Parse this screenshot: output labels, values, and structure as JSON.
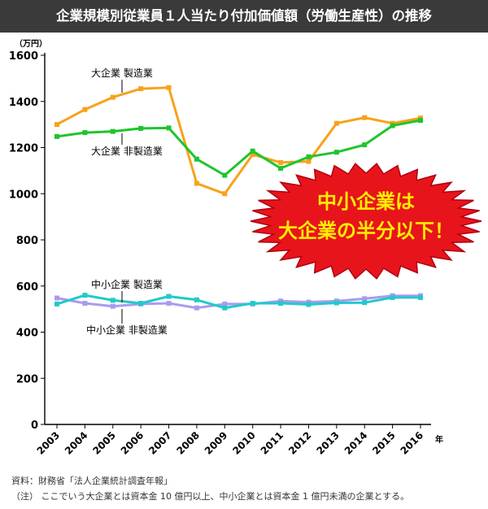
{
  "title": "企業規模別従業員１人当たり付加価値額（労働生産性）の推移",
  "callout": {
    "line1": "中小企業は",
    "line2": "大企業の半分以下！"
  },
  "footer": {
    "source": "資料：財務省「法人企業統計調査年報」",
    "note": "（注） ここでいう大企業とは資本金 10 億円以上、中小企業とは資本金 1 億円未満の企業とする。"
  },
  "colors": {
    "orange": "#f7a21b",
    "green": "#1ec52c",
    "lavender": "#aa9af0",
    "cyan": "#22c9c9",
    "callout_red": "#e8141c",
    "callout_text": "#ffee00"
  },
  "chart_data": {
    "type": "line",
    "title": "企業規模別従業員１人当たり付加価値額（労働生産性）の推移",
    "yunit": "（万円）",
    "xunit": "年",
    "ylim": [
      0,
      1600
    ],
    "yticks": [
      "0",
      "200",
      "400",
      "600",
      "800",
      "1000",
      "1200",
      "1400",
      "1600"
    ],
    "categories": [
      "2003",
      "2004",
      "2005",
      "2006",
      "2007",
      "2008",
      "2009",
      "2010",
      "2011",
      "2012",
      "2013",
      "2014",
      "2015",
      "2016"
    ],
    "series": [
      {
        "name": "大企業 製造業",
        "color": "#f7a21b",
        "values": [
          1300,
          1365,
          1418,
          1455,
          1460,
          1045,
          1000,
          1170,
          1135,
          1140,
          1305,
          1330,
          1305,
          1328
        ]
      },
      {
        "name": "大企業 非製造業",
        "color": "#1ec52c",
        "values": [
          1248,
          1265,
          1270,
          1283,
          1285,
          1150,
          1080,
          1185,
          1110,
          1160,
          1180,
          1212,
          1295,
          1318
        ]
      },
      {
        "name": "中小企業 製造業",
        "color": "#aa9af0",
        "values": [
          548,
          525,
          512,
          522,
          525,
          505,
          522,
          522,
          535,
          530,
          535,
          545,
          558,
          558
        ]
      },
      {
        "name": "中小企業 非製造業",
        "color": "#22c9c9",
        "values": [
          522,
          560,
          538,
          525,
          555,
          540,
          505,
          525,
          525,
          520,
          527,
          528,
          550,
          550
        ]
      }
    ]
  }
}
